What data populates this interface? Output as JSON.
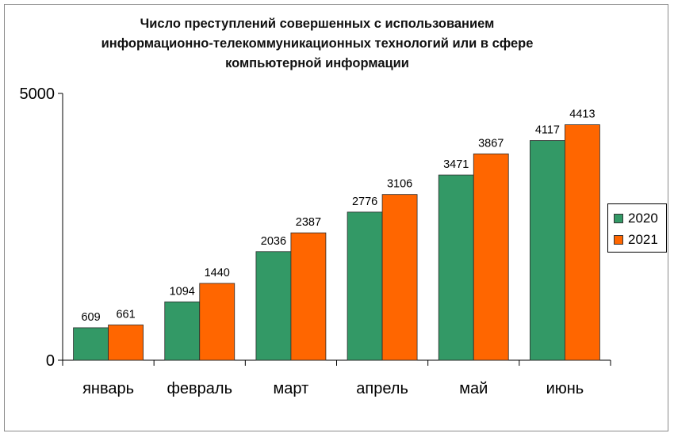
{
  "chart_data": {
    "type": "bar",
    "title_lines": [
      "Число преступлений  совершенных с использованием",
      "информационно-телекоммуникационных технологий или в сфере",
      "компьютерной информации"
    ],
    "categories": [
      "январь",
      "февраль",
      "март",
      "апрель",
      "май",
      "июнь"
    ],
    "series": [
      {
        "name": "2020",
        "color": "#339966",
        "values": [
          609,
          1094,
          2036,
          2776,
          3471,
          4117
        ]
      },
      {
        "name": "2021",
        "color": "#ff6600",
        "values": [
          661,
          1440,
          2387,
          3106,
          3867,
          4413
        ]
      }
    ],
    "ylim": [
      0,
      5000
    ],
    "y_ticks": [
      "0",
      "5000"
    ],
    "grid": false,
    "legend_position": "right"
  }
}
